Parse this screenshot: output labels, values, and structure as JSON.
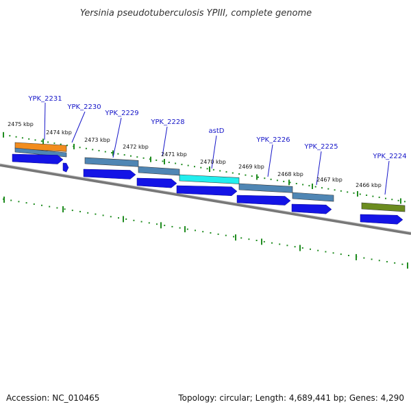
{
  "title": "Yersinia pseudotuberculosis YPIII, complete genome",
  "footer": {
    "accession": "Accession: NC_010465",
    "summary": "Topology: circular; Length: 4,689,441 bp; Genes: 4,290"
  },
  "kbp_ticks": [
    "2475 kbp",
    "2474 kbp",
    "2473 kbp",
    "2472 kbp",
    "2471 kbp",
    "2470 kbp",
    "2469 kbp",
    "2468 kbp",
    "2467 kbp",
    "2466 kbp"
  ],
  "genes": [
    {
      "name": "YPK_2231",
      "color": "#f28c1e"
    },
    {
      "name": "YPK_2230",
      "color": "#4f86b4"
    },
    {
      "name": "YPK_2229",
      "color": "#4f86b4"
    },
    {
      "name": "YPK_2228",
      "color": "#4f86b4"
    },
    {
      "name": "astD",
      "color": "#22eeee"
    },
    {
      "name": "YPK_2226",
      "color": "#4f86b4"
    },
    {
      "name": "YPK_2225",
      "color": "#4f86b4"
    },
    {
      "name": "YPK_2224",
      "color": "#6b8c1f"
    }
  ],
  "colors": {
    "backbone": "#777777",
    "tick": "#1f8c1f",
    "cds": "#1414e6",
    "label": "#1515c8"
  }
}
